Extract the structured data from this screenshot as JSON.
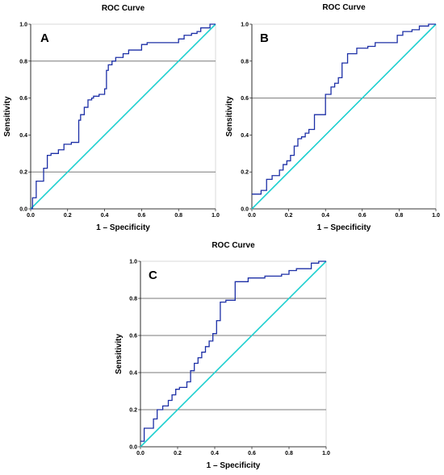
{
  "colors": {
    "roc_curve": "#1c2fa6",
    "reference_line": "#1ccfcf",
    "grid": "#7a7a7a",
    "plot_frame": "#d8d8d8",
    "background": "#ffffff"
  },
  "chart_data": [
    {
      "type": "line",
      "panel_label": "A",
      "title": "ROC Curve",
      "xlabel": "1 – Specificity",
      "ylabel": "Sensitivity",
      "xlim": [
        0,
        1
      ],
      "ylim": [
        0,
        1
      ],
      "xticks": [
        "0.0",
        "0.2",
        "0.4",
        "0.6",
        "0.8",
        "1.0"
      ],
      "yticks": [
        "0.0",
        "0.2",
        "0.4",
        "0.6",
        "0.8",
        "1.0"
      ],
      "horizontal_lines": [
        0.2,
        0.8
      ],
      "series": [
        {
          "x": [
            0,
            0.01,
            0.01,
            0.03,
            0.03,
            0.07,
            0.07,
            0.09,
            0.09,
            0.11,
            0.11,
            0.15,
            0.15,
            0.18,
            0.18,
            0.22,
            0.22,
            0.26,
            0.26,
            0.27,
            0.27,
            0.29,
            0.29,
            0.31,
            0.31,
            0.33,
            0.33,
            0.34,
            0.34,
            0.37,
            0.37,
            0.4,
            0.4,
            0.41,
            0.41,
            0.42,
            0.42,
            0.44,
            0.44,
            0.46,
            0.46,
            0.5,
            0.5,
            0.53,
            0.53,
            0.6,
            0.6,
            0.63,
            0.63,
            0.8,
            0.8,
            0.83,
            0.83,
            0.87,
            0.87,
            0.9,
            0.9,
            0.92,
            0.92,
            0.97,
            0.97,
            1
          ],
          "y": [
            0,
            0,
            0.06,
            0.06,
            0.15,
            0.15,
            0.22,
            0.22,
            0.29,
            0.29,
            0.3,
            0.3,
            0.32,
            0.32,
            0.35,
            0.35,
            0.36,
            0.36,
            0.48,
            0.48,
            0.51,
            0.51,
            0.55,
            0.55,
            0.59,
            0.59,
            0.6,
            0.6,
            0.61,
            0.61,
            0.62,
            0.62,
            0.65,
            0.65,
            0.75,
            0.75,
            0.78,
            0.78,
            0.8,
            0.8,
            0.82,
            0.82,
            0.84,
            0.84,
            0.86,
            0.86,
            0.89,
            0.89,
            0.9,
            0.9,
            0.92,
            0.92,
            0.94,
            0.94,
            0.95,
            0.95,
            0.96,
            0.96,
            0.98,
            0.98,
            1,
            1
          ]
        },
        {
          "x": [
            0,
            1
          ],
          "y": [
            0,
            1
          ]
        }
      ]
    },
    {
      "type": "line",
      "panel_label": "B",
      "title": "ROC Curve",
      "xlabel": "1 – Specificity",
      "ylabel": "Sensitivity",
      "xlim": [
        0,
        1
      ],
      "ylim": [
        0,
        1
      ],
      "xticks": [
        "0.0",
        "0.2",
        "0.4",
        "0.6",
        "0.8",
        "1.0"
      ],
      "yticks": [
        "0.0",
        "0.2",
        "0.4",
        "0.6",
        "0.8",
        "1.0"
      ],
      "horizontal_lines": [
        0.6
      ],
      "series": [
        {
          "x": [
            0,
            0.05,
            0.05,
            0.08,
            0.08,
            0.11,
            0.11,
            0.15,
            0.15,
            0.17,
            0.17,
            0.19,
            0.19,
            0.21,
            0.21,
            0.23,
            0.23,
            0.25,
            0.25,
            0.27,
            0.27,
            0.29,
            0.29,
            0.31,
            0.31,
            0.34,
            0.34,
            0.4,
            0.4,
            0.43,
            0.43,
            0.45,
            0.45,
            0.47,
            0.47,
            0.49,
            0.49,
            0.52,
            0.52,
            0.57,
            0.57,
            0.63,
            0.63,
            0.67,
            0.67,
            0.79,
            0.79,
            0.82,
            0.82,
            0.87,
            0.87,
            0.91,
            0.91,
            0.96,
            0.96,
            0.99,
            0.99,
            1
          ],
          "y": [
            0.08,
            0.08,
            0.1,
            0.1,
            0.16,
            0.16,
            0.18,
            0.18,
            0.21,
            0.21,
            0.24,
            0.24,
            0.26,
            0.26,
            0.29,
            0.29,
            0.34,
            0.34,
            0.38,
            0.38,
            0.39,
            0.39,
            0.41,
            0.41,
            0.43,
            0.43,
            0.51,
            0.51,
            0.62,
            0.62,
            0.66,
            0.66,
            0.68,
            0.68,
            0.71,
            0.71,
            0.79,
            0.79,
            0.84,
            0.84,
            0.87,
            0.87,
            0.88,
            0.88,
            0.9,
            0.9,
            0.94,
            0.94,
            0.96,
            0.96,
            0.97,
            0.97,
            0.99,
            0.99,
            1,
            1,
            1,
            1
          ]
        },
        {
          "x": [
            0,
            1
          ],
          "y": [
            0,
            1
          ]
        }
      ]
    },
    {
      "type": "line",
      "panel_label": "C",
      "title": "ROC Curve",
      "xlabel": "1 – Specificity",
      "ylabel": "Sensitivity",
      "xlim": [
        0,
        1
      ],
      "ylim": [
        0,
        1
      ],
      "xticks": [
        "0.0",
        "0.2",
        "0.4",
        "0.6",
        "0.8",
        "1.0"
      ],
      "yticks": [
        "0.0",
        "0.2",
        "0.4",
        "0.6",
        "0.8",
        "1.0"
      ],
      "horizontal_lines": [
        0.2,
        0.4,
        0.6,
        0.8
      ],
      "series": [
        {
          "x": [
            0,
            0.02,
            0.02,
            0.07,
            0.07,
            0.09,
            0.09,
            0.12,
            0.12,
            0.15,
            0.15,
            0.17,
            0.17,
            0.19,
            0.19,
            0.21,
            0.21,
            0.25,
            0.25,
            0.27,
            0.27,
            0.29,
            0.29,
            0.31,
            0.31,
            0.33,
            0.33,
            0.35,
            0.35,
            0.37,
            0.37,
            0.39,
            0.39,
            0.41,
            0.41,
            0.43,
            0.43,
            0.46,
            0.46,
            0.51,
            0.51,
            0.58,
            0.58,
            0.67,
            0.67,
            0.76,
            0.76,
            0.8,
            0.8,
            0.84,
            0.84,
            0.92,
            0.92,
            0.96,
            0.96,
            1
          ],
          "y": [
            0.03,
            0.03,
            0.1,
            0.1,
            0.15,
            0.15,
            0.2,
            0.2,
            0.22,
            0.22,
            0.25,
            0.25,
            0.28,
            0.28,
            0.31,
            0.31,
            0.32,
            0.32,
            0.35,
            0.35,
            0.41,
            0.41,
            0.45,
            0.45,
            0.48,
            0.48,
            0.51,
            0.51,
            0.54,
            0.54,
            0.57,
            0.57,
            0.61,
            0.61,
            0.68,
            0.68,
            0.78,
            0.78,
            0.79,
            0.79,
            0.89,
            0.89,
            0.91,
            0.91,
            0.92,
            0.92,
            0.93,
            0.93,
            0.95,
            0.95,
            0.96,
            0.96,
            0.99,
            0.99,
            1,
            1
          ]
        },
        {
          "x": [
            0,
            1
          ],
          "y": [
            0,
            1
          ]
        }
      ]
    }
  ]
}
